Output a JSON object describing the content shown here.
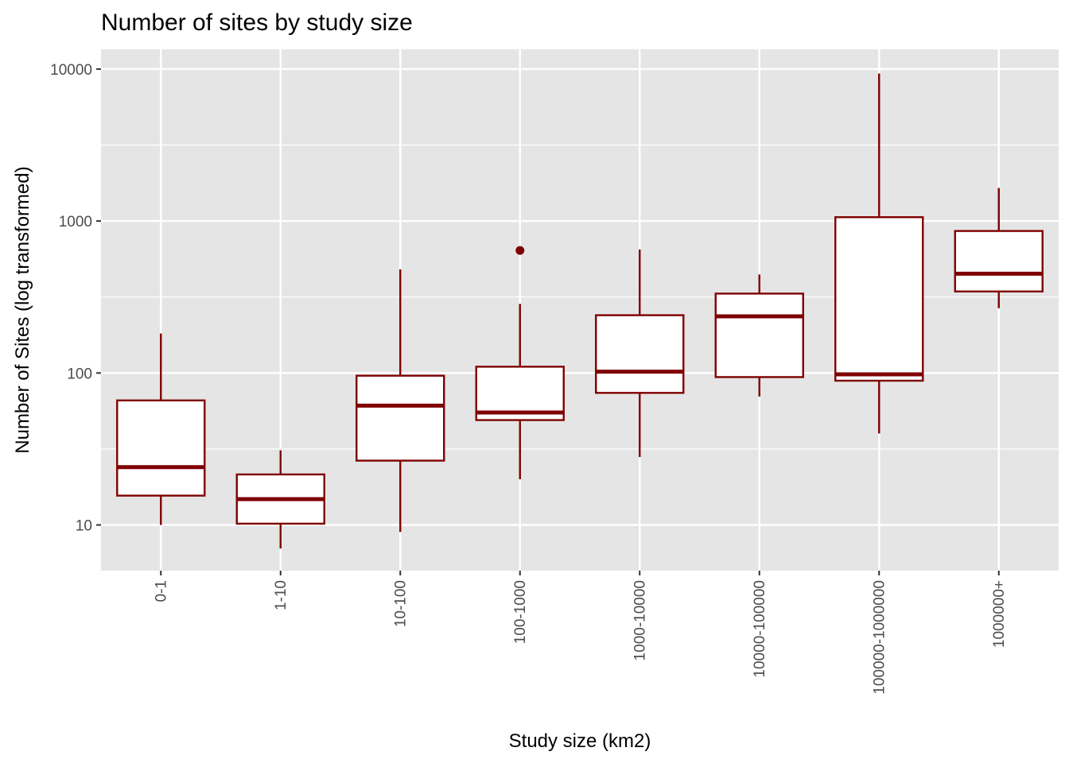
{
  "chart_data": {
    "type": "boxplot",
    "title": "Number of sites by study size",
    "xlabel": "Study size (km2)",
    "ylabel": "Number of Sites (log transformed)",
    "y_scale": "log10",
    "ylim": [
      5,
      14000
    ],
    "y_ticks": [
      10,
      100,
      1000,
      10000
    ],
    "y_tick_labels": [
      "10",
      "100",
      "1000",
      "10000"
    ],
    "grid": true,
    "colors": {
      "panel": "#e5e5e5",
      "grid": "#ffffff",
      "box_stroke": "#7f0000",
      "box_fill": "#ffffff",
      "tick_label": "#4d4d4d"
    },
    "categories": [
      "0-1",
      "1-10",
      "10-100",
      "100-1000",
      "1000-10000",
      "10000-100000",
      "100000-1000000",
      "1000000+"
    ],
    "boxes": [
      {
        "whisker_low": 10,
        "q1": 15.6,
        "median": 24,
        "q3": 66,
        "whisker_high": 182,
        "outliers": []
      },
      {
        "whisker_low": 7,
        "q1": 10.2,
        "median": 14.8,
        "q3": 21.5,
        "whisker_high": 31,
        "outliers": []
      },
      {
        "whisker_low": 9,
        "q1": 26.5,
        "median": 61,
        "q3": 96,
        "whisker_high": 480,
        "outliers": []
      },
      {
        "whisker_low": 20,
        "q1": 49,
        "median": 55,
        "q3": 110,
        "whisker_high": 285,
        "outliers": [
          640
        ]
      },
      {
        "whisker_low": 28,
        "q1": 74,
        "median": 102,
        "q3": 240,
        "whisker_high": 650,
        "outliers": []
      },
      {
        "whisker_low": 70,
        "q1": 94,
        "median": 236,
        "q3": 333,
        "whisker_high": 445,
        "outliers": []
      },
      {
        "whisker_low": 40,
        "q1": 89,
        "median": 98,
        "q3": 1060,
        "whisker_high": 9350,
        "outliers": []
      },
      {
        "whisker_low": 267,
        "q1": 344,
        "median": 450,
        "q3": 860,
        "whisker_high": 1650,
        "outliers": []
      }
    ]
  }
}
